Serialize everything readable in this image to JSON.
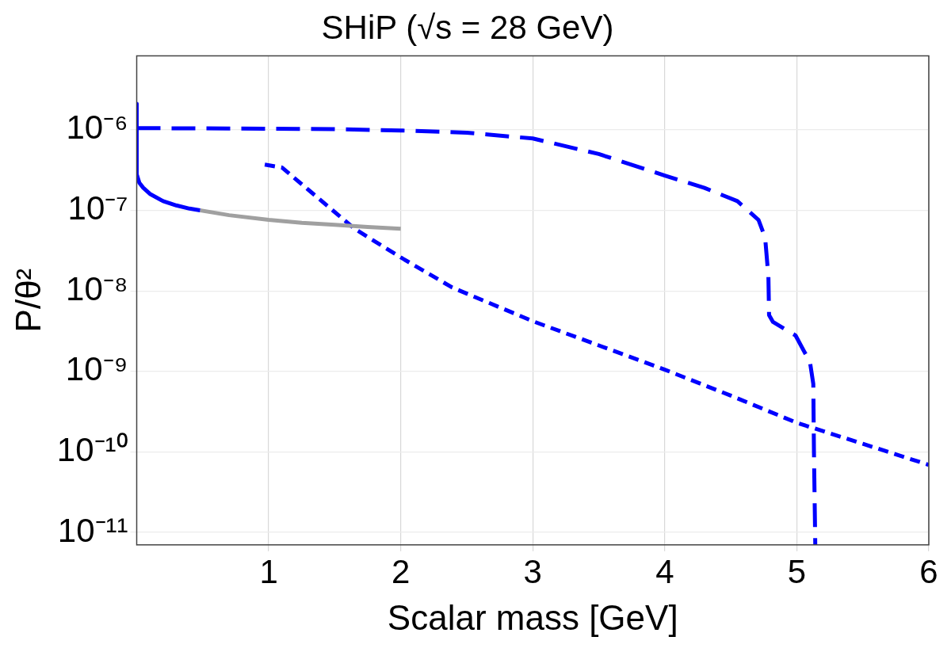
{
  "chart_data": {
    "type": "line",
    "title": "SHiP (√s = 28 GeV)",
    "xlabel": "Scalar mass [GeV]",
    "ylabel": "P/θ²",
    "log": "y",
    "grid": true,
    "legend": false,
    "marker": "none",
    "xlim": [
      0,
      6
    ],
    "xticks": [
      1,
      2,
      3,
      4,
      5,
      6
    ],
    "ylim": [
      7e-12,
      8.3e-06
    ],
    "yticks": [
      {
        "value": 1e-11,
        "label": "10⁻¹¹"
      },
      {
        "value": 1e-10,
        "label": "10⁻¹⁰"
      },
      {
        "value": 1e-09,
        "label": "10⁻⁹"
      },
      {
        "value": 1e-08,
        "label": "10⁻⁸"
      },
      {
        "value": 1e-07,
        "label": "10⁻⁷"
      },
      {
        "value": 1e-06,
        "label": "10⁻⁶"
      }
    ],
    "series": [
      {
        "color": "#0000ff",
        "line_style": "solid",
        "x": [
          0,
          0,
          0.02,
          0.05,
          0.1,
          0.2,
          0.3,
          0.4,
          0.48
        ],
        "values": [
          2.1e-06,
          2.8e-07,
          2.2e-07,
          1.9e-07,
          1.6e-07,
          1.3e-07,
          1.15e-07,
          1.05e-07,
          1e-07
        ]
      },
      {
        "color": "#a0a0a0",
        "line_style": "solid",
        "x": [
          0.48,
          0.7,
          1,
          1.25,
          1.5,
          1.75,
          2
        ],
        "values": [
          1e-07,
          8.7e-08,
          7.6e-08,
          7e-08,
          6.6e-08,
          6.2e-08,
          5.9e-08
        ]
      },
      {
        "color": "#0000ff",
        "line_style": "dashed",
        "x": [
          0,
          0.5,
          1,
          1.5,
          2,
          2.5,
          3,
          3.5,
          4,
          4.3,
          4.55,
          4.71,
          4.76,
          4.785,
          4.79,
          4.82,
          4.99,
          5.1,
          5.125,
          5.13,
          5.14
        ],
        "values": [
          1.05e-06,
          1.04e-06,
          1.03e-06,
          1.02e-06,
          9.8e-07,
          9.2e-07,
          7.8e-07,
          5e-07,
          2.7e-07,
          1.9e-07,
          1.3e-07,
          7.6e-08,
          4.6e-08,
          1.5e-08,
          5e-09,
          4.1e-09,
          2.8e-09,
          1.3e-09,
          7e-10,
          1e-10,
          7e-12
        ]
      },
      {
        "color": "#0000ff",
        "line_style": "dotted",
        "x": [
          0.97,
          1.1,
          1.3,
          1.65,
          2,
          2.39,
          3,
          3.5,
          4,
          4.5,
          5,
          5.5,
          6
        ],
        "values": [
          3.7e-07,
          3.4e-07,
          1.8e-07,
          5.9e-08,
          2.6e-08,
          1.1e-08,
          4.2e-09,
          2.1e-09,
          1.05e-09,
          5e-10,
          2.3e-10,
          1.26e-10,
          6.9e-11
        ]
      }
    ]
  }
}
